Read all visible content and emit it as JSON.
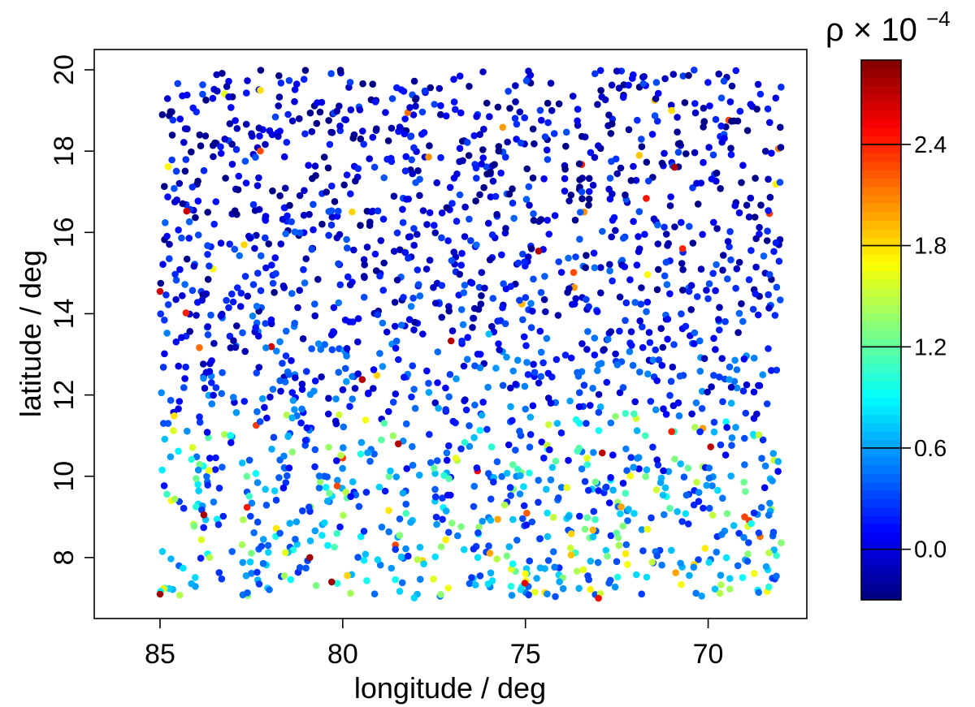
{
  "chart_data": {
    "type": "scatter",
    "xlabel": "longitude / deg",
    "ylabel": "latitude / deg",
    "x_axis_reversed": true,
    "xlim": [
      86.8,
      67.3
    ],
    "ylim": [
      6.5,
      20.5
    ],
    "xticks": [
      85,
      80,
      75,
      70
    ],
    "yticks": [
      8,
      10,
      12,
      14,
      16,
      18,
      20
    ],
    "point_extent": {
      "x": [
        85,
        68
      ],
      "y": [
        7,
        20
      ]
    },
    "approx_point_count": 2000,
    "grid": false,
    "colorbar": {
      "title_base": "ρ × 10",
      "title_exponent": "−4",
      "colormap": "jet",
      "range": [
        -0.3,
        2.9
      ],
      "ticks": [
        {
          "value": 0.0,
          "label": "0.0"
        },
        {
          "value": 0.6,
          "label": "0.6"
        },
        {
          "value": 1.2,
          "label": "1.2"
        },
        {
          "value": 1.8,
          "label": "1.8"
        },
        {
          "value": 2.4,
          "label": "2.4"
        }
      ]
    },
    "value_trend": "values mostly low (blue, about -0.2 to 0.6) in the north; more mid/high values (cyan, green, yellow, red, about 0.6 to 2.8) toward the south below ~11 deg latitude",
    "sample_points": [
      {
        "x": 85.0,
        "y": 7.1,
        "value": 2.8
      },
      {
        "x": 80.3,
        "y": 7.4,
        "value": 2.8
      },
      {
        "x": 83.8,
        "y": 9.05,
        "value": 2.8
      },
      {
        "x": 80.9,
        "y": 8.0,
        "value": 2.8
      },
      {
        "x": 73.0,
        "y": 7.0,
        "value": 2.5
      },
      {
        "x": 71.0,
        "y": 11.1,
        "value": 2.4
      },
      {
        "x": 70.7,
        "y": 15.6,
        "value": 2.4
      },
      {
        "x": 69.0,
        "y": 9.0,
        "value": 2.3
      },
      {
        "x": 74.4,
        "y": 16.3,
        "value": 0.1
      },
      {
        "x": 76.0,
        "y": 13.5,
        "value": 0.7
      },
      {
        "x": 77.5,
        "y": 10.2,
        "value": 1.2
      },
      {
        "x": 75.0,
        "y": 7.6,
        "value": 1.7
      },
      {
        "x": 82.0,
        "y": 18.5,
        "value": 0.0
      },
      {
        "x": 71.0,
        "y": 19.0,
        "value": 1.8
      }
    ]
  }
}
